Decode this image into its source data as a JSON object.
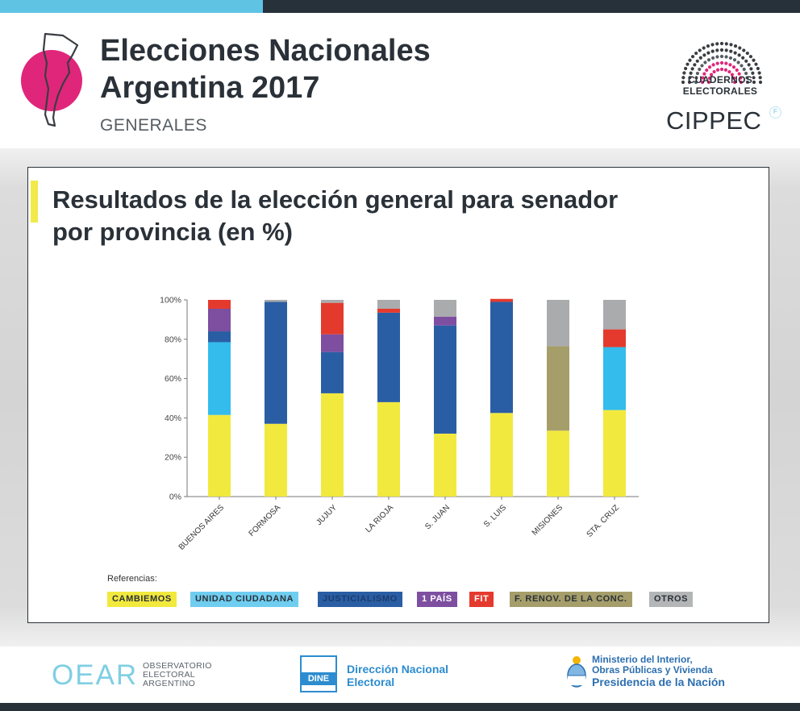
{
  "header": {
    "title_line1": "Elecciones Nacionales",
    "title_line2": "Argentina 2017",
    "subtitle": "GENERALES",
    "brand_line1": "CUADERNOS",
    "brand_line2": "ELECTORALES",
    "brand2": "CIPPEC",
    "brand2_mark": "F"
  },
  "panel": {
    "title_line1": "Resultados de la elección general para senador",
    "title_line2": "por provincia (en %)",
    "references_label": "Referencias:"
  },
  "chart_data": {
    "type": "bar",
    "stacked": true,
    "ylim": [
      0,
      100
    ],
    "yticks": [
      "0%",
      "20%",
      "40%",
      "60%",
      "80%",
      "100%"
    ],
    "yticks_values": [
      0,
      20,
      40,
      60,
      80,
      100
    ],
    "categories": [
      "BUENOS AIRES",
      "FORMOSA",
      "JUJUY",
      "LA RIOJA",
      "S. JUAN",
      "S. LUIS",
      "MISIONES",
      "STA. CRUZ"
    ],
    "series": [
      {
        "name": "CAMBIEMOS",
        "color": "#f2e93e",
        "values": [
          41.5,
          37,
          52.5,
          48,
          32,
          42.5,
          33.5,
          44
        ]
      },
      {
        "name": "UNIDAD CIUDADANA",
        "color": "#34bcec",
        "values": [
          37,
          0,
          0,
          0,
          0,
          0,
          0,
          32
        ]
      },
      {
        "name": "JUSTICIALISMO",
        "color": "#2a5ea4",
        "values": [
          5.5,
          62,
          21,
          45.5,
          55,
          56.5,
          0,
          0
        ]
      },
      {
        "name": "1 PAÍS",
        "color": "#7e4ea0",
        "values": [
          11.5,
          0,
          9,
          0,
          4.5,
          0,
          0,
          0
        ]
      },
      {
        "name": "FIT",
        "color": "#e43a2e",
        "values": [
          4.5,
          0,
          16,
          2,
          0,
          1.5,
          0,
          9
        ]
      },
      {
        "name": "F. RENOV. DE LA CONC.",
        "color": "#a59e6a",
        "values": [
          0,
          0,
          0,
          0,
          0,
          0,
          43,
          0
        ]
      },
      {
        "name": "OTROS",
        "color": "#aaabad",
        "values": [
          0,
          1,
          1.5,
          4.5,
          8.5,
          0,
          23.5,
          15
        ]
      }
    ]
  },
  "legend": [
    {
      "label": "CAMBIEMOS",
      "bg": "#f2e93e",
      "fg": "#2a3138"
    },
    {
      "label": "UNIDAD CIUDADANA",
      "bg": "#6fcdf0",
      "fg": "#2a3138"
    },
    {
      "label": "JUSTICIALISMO",
      "bg": "#2a5ea4",
      "fg": "#1c3c6c"
    },
    {
      "label": "1 PAÍS",
      "bg": "#7e4ea0",
      "fg": "#ffffff"
    },
    {
      "label": "FIT",
      "bg": "#e43a2e",
      "fg": "#ffffff"
    },
    {
      "label": "F. RENOV. DE LA CONC.",
      "bg": "#a59e6a",
      "fg": "#2a3138"
    },
    {
      "label": "OTROS",
      "bg": "#b4b5b7",
      "fg": "#2a3138"
    }
  ],
  "footer": {
    "oear_logo": "OEAR",
    "oear_line1": "OBSERVATORIO",
    "oear_line2": "ELECTORAL",
    "oear_line3": "ARGENTINO",
    "dine_logo": "DINE",
    "dine_line1": "Dirección Nacional",
    "dine_line2": "Electoral",
    "min_line1": "Ministerio del Interior,",
    "min_line2": "Obras Públicas y Vivienda",
    "min_line3": "Presidencia de la Nación"
  }
}
